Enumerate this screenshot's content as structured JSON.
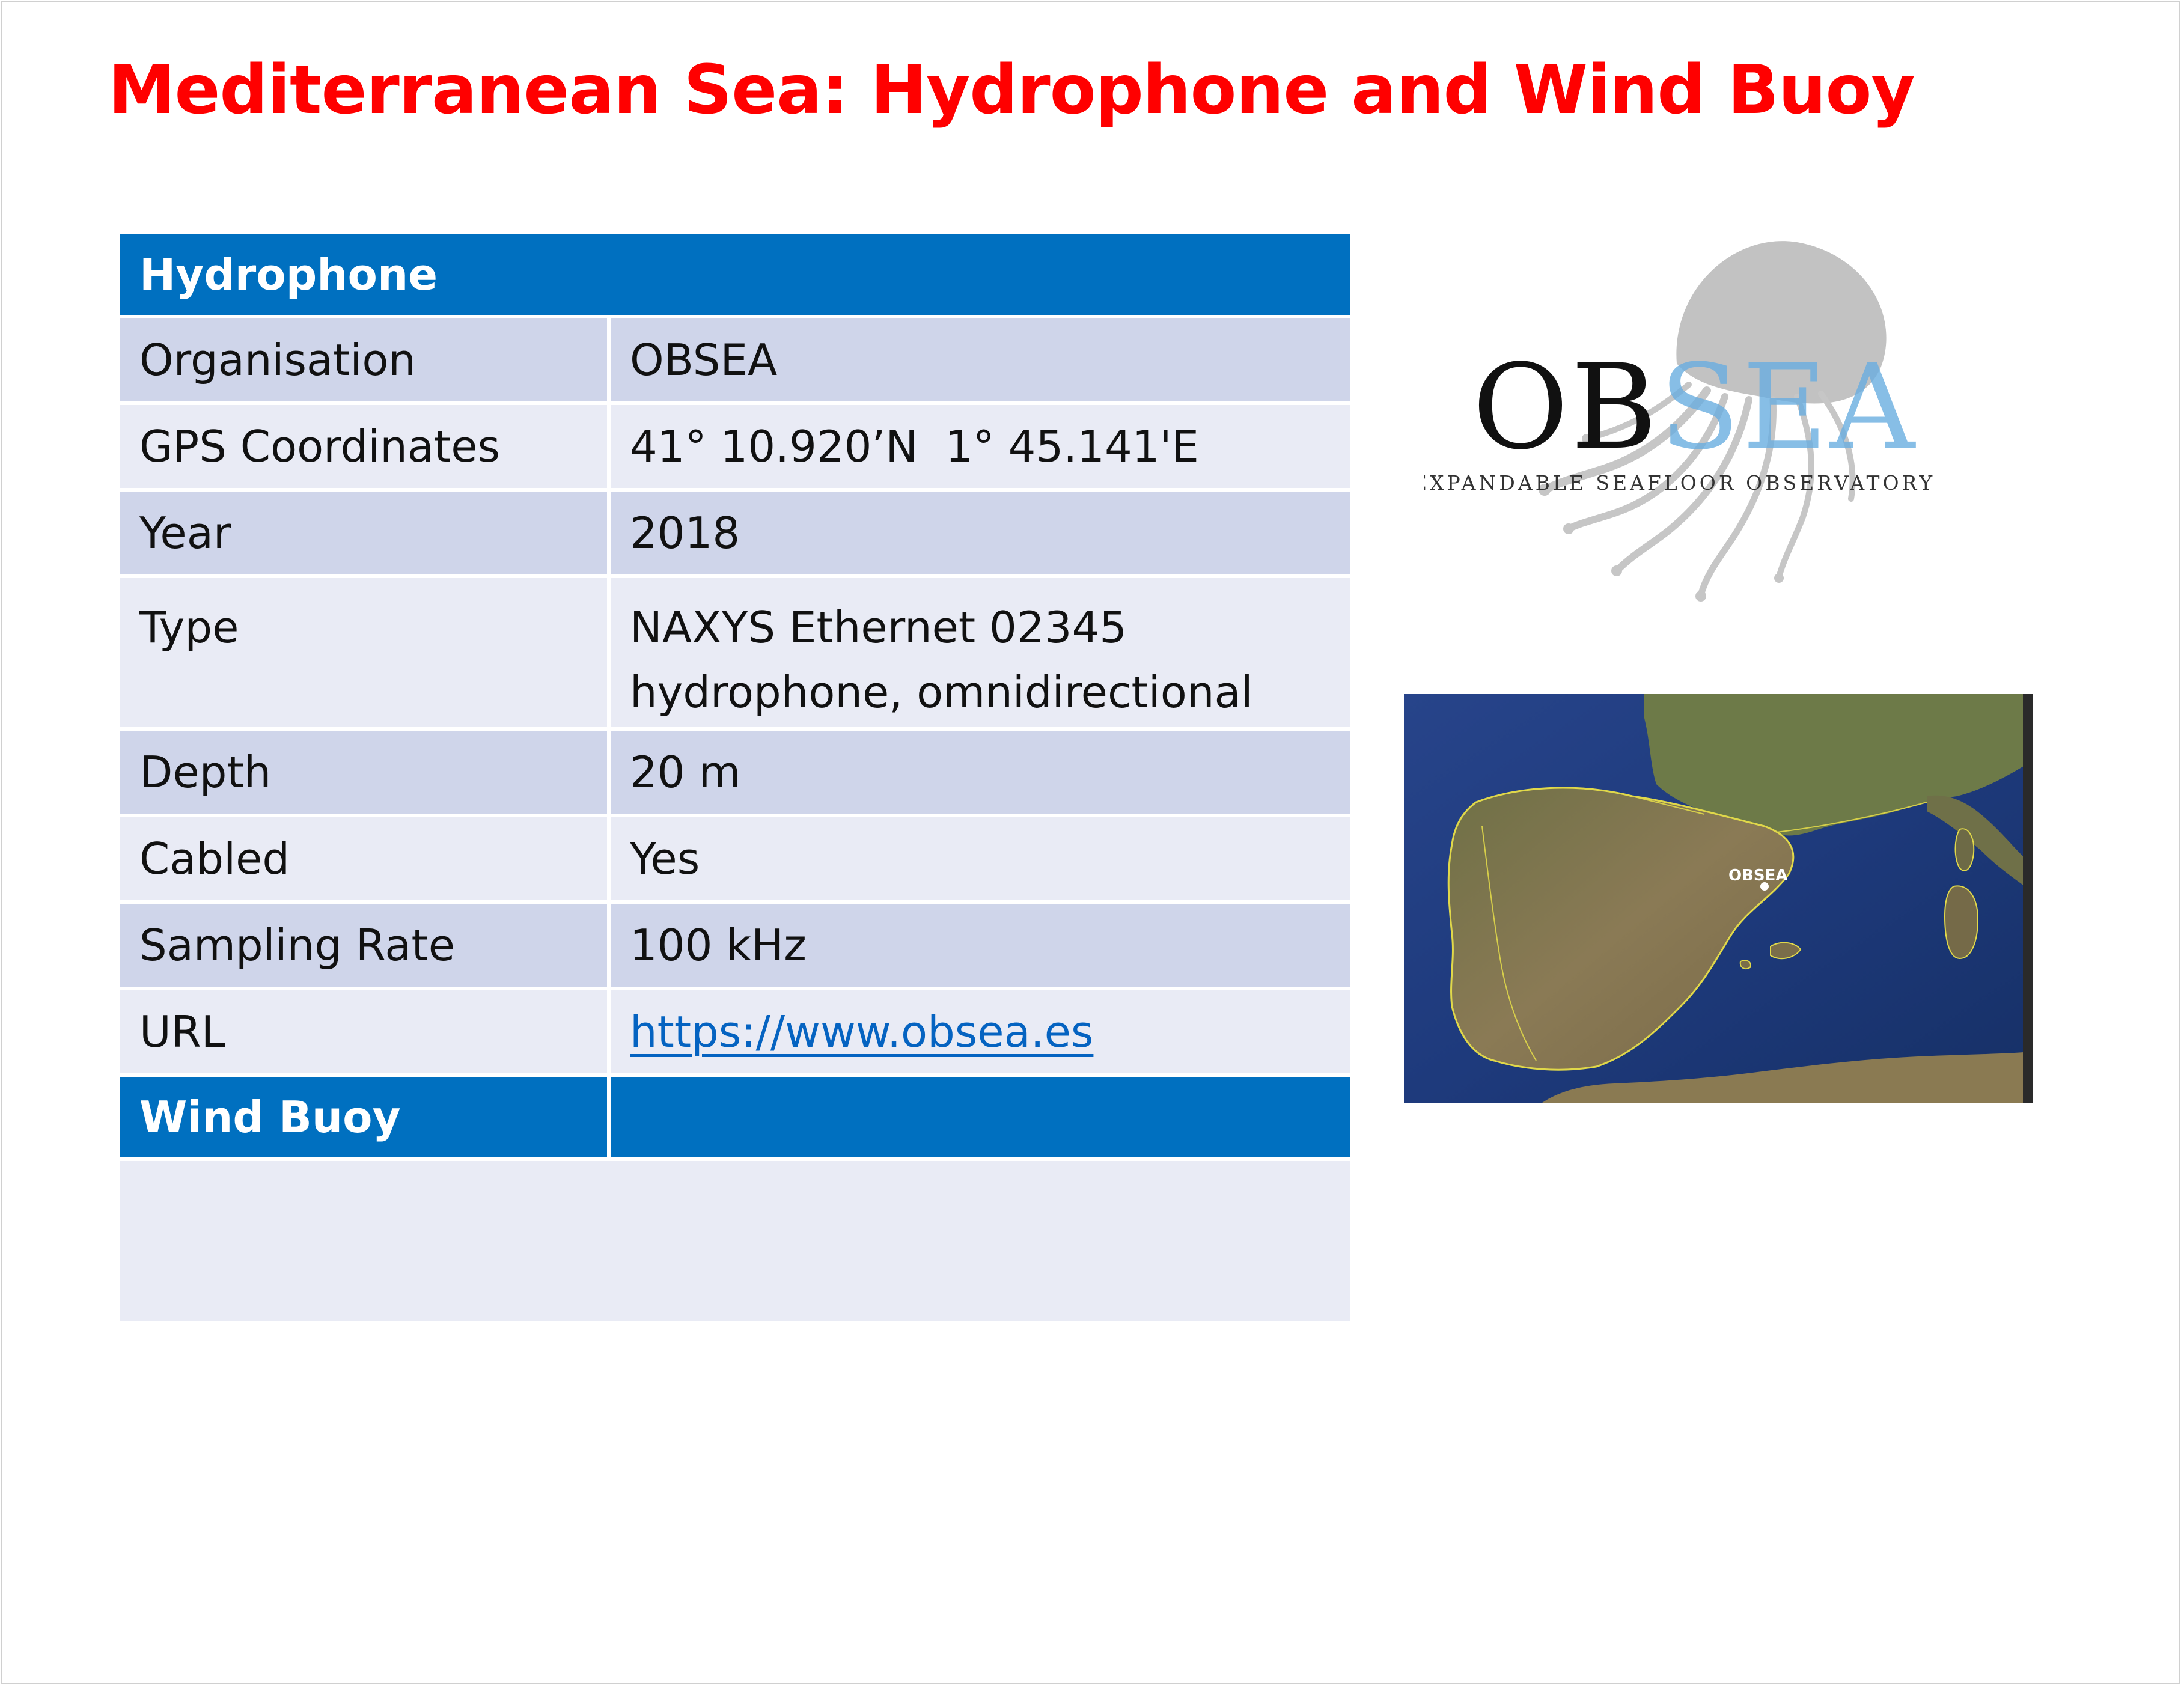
{
  "title": "Mediterranean Sea: Hydrophone and Wind Buoy",
  "table": {
    "header": "Hydrophone",
    "rows": [
      {
        "label": "Organisation",
        "value": "OBSEA"
      },
      {
        "label": "GPS Coordinates",
        "value": "41° 10.920’N  1° 45.141'E"
      },
      {
        "label": "Year",
        "value": "2018"
      },
      {
        "label": "Type",
        "value": "NAXYS Ethernet 02345",
        "value2": "hydrophone, omnidirectional"
      },
      {
        "label": "Depth",
        "value": "20 m"
      },
      {
        "label": "Cabled",
        "value": "Yes"
      },
      {
        "label": "Sampling Rate",
        "value": "100 kHz"
      },
      {
        "label": "URL",
        "value": "https://www.obsea.es"
      }
    ],
    "section2_header": "Wind Buoy"
  },
  "logo": {
    "wordmark": "OBSEA",
    "tagline": "EXPANDABLE SEAFLOOR OBSERVATORY"
  },
  "map": {
    "marker_label": "OBSEA"
  },
  "colors": {
    "title": "#ff0000",
    "header_bg": "#0070c0",
    "row_dark": "#cfd5ea",
    "row_light": "#e9ebf5",
    "link": "#0563c1"
  }
}
